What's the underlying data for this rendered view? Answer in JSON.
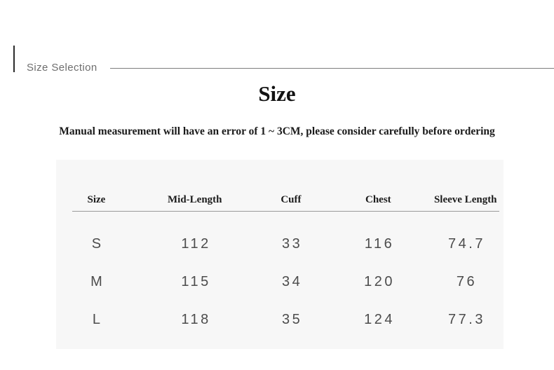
{
  "section": {
    "label": "Size Selection"
  },
  "content": {
    "title": "Size",
    "note": "Manual measurement will have an error of 1 ~ 3CM, please consider carefully before ordering"
  },
  "size_table": {
    "columns": [
      "Size",
      "Mid-Length",
      "Cuff",
      "Chest",
      "Sleeve Length"
    ],
    "rows": [
      {
        "size": "S",
        "mid_length": "112",
        "cuff": "33",
        "chest": "116",
        "sleeve_length": "74.7"
      },
      {
        "size": "M",
        "mid_length": "115",
        "cuff": "34",
        "chest": "120",
        "sleeve_length": "76"
      },
      {
        "size": "L",
        "mid_length": "118",
        "cuff": "35",
        "chest": "124",
        "sleeve_length": "77.3"
      }
    ]
  },
  "colors": {
    "panel_background": "#f7f7f7",
    "accent_bar": "#2b2b2b",
    "section_label_text": "#6e6e6e",
    "divider_line": "#7d7d7d",
    "table_rule": "#9a9a9a",
    "heading_text": "#121212",
    "table_value_text": "#4c4c4c"
  }
}
